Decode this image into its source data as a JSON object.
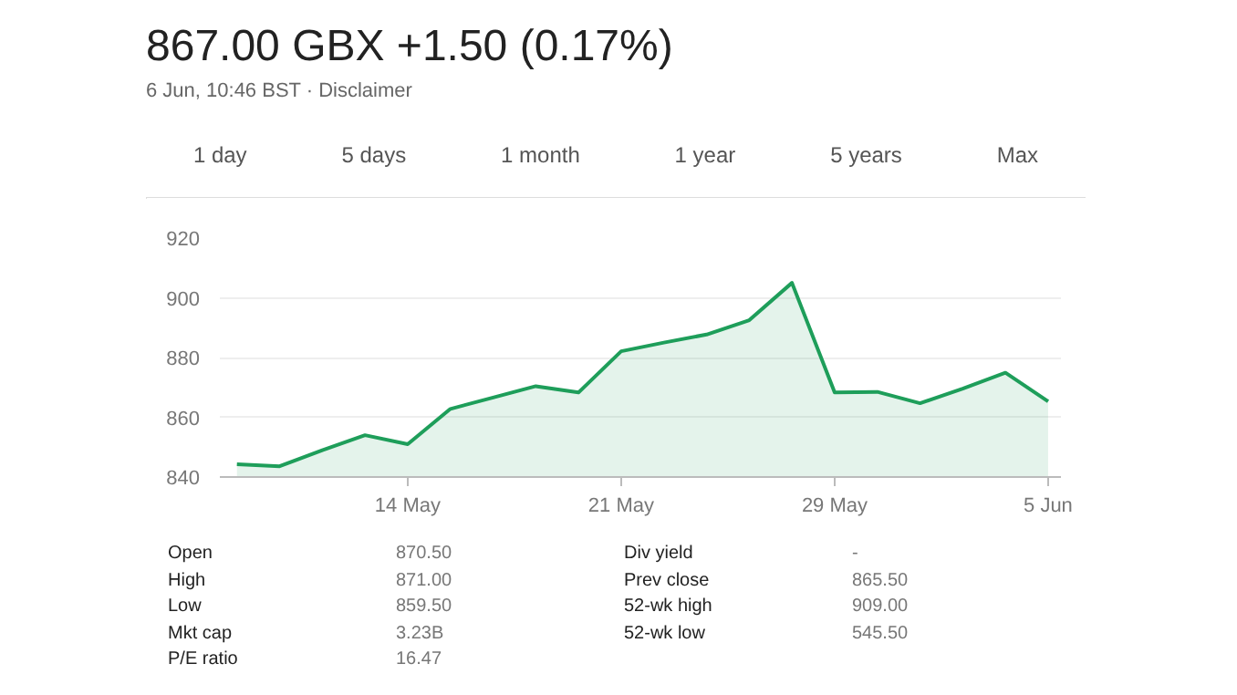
{
  "chart_data": {
    "type": "area",
    "title": "867.00 GBX +1.50 (0.17%)",
    "subtitle": "6 Jun, 10:46 BST · Disclaimer",
    "categories": [
      null,
      null,
      null,
      null,
      "14 May",
      null,
      null,
      null,
      null,
      "21 May",
      null,
      null,
      null,
      null,
      "29 May",
      null,
      null,
      null,
      null,
      "5 Jun"
    ],
    "series": [
      {
        "color": "#1e9e5a",
        "values": [
          844.3,
          843.6,
          849,
          854,
          851,
          862.8,
          866.6,
          870.4,
          868.3,
          882.1,
          885,
          887.7,
          892.5,
          905,
          868.3,
          868.5,
          864.7,
          869.6,
          874.9,
          865.3
        ]
      }
    ],
    "ylim": [
      840,
      920
    ],
    "yticks": [
      840,
      860,
      880,
      900,
      920
    ],
    "grid": "y",
    "annotations": [
      "1 day",
      "5 days",
      "1 month",
      "1 year",
      "5 years",
      "Max",
      "Open",
      "870.50",
      "High",
      "871.00",
      "Low",
      "859.50",
      "Mkt cap",
      "3.23B",
      "P/E ratio",
      "16.47",
      "Div yield",
      "-",
      "Prev close",
      "865.50",
      "52-wk high",
      "909.00",
      "52-wk low",
      "545.50"
    ]
  }
}
